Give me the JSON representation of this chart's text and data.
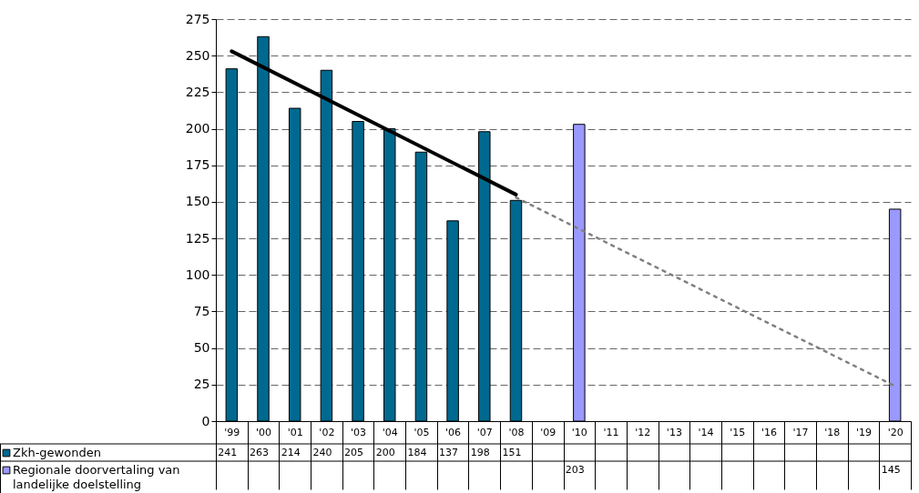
{
  "chart_data": {
    "type": "bar",
    "categories": [
      "'99",
      "'00",
      "'01",
      "'02",
      "'03",
      "'04",
      "'05",
      "'06",
      "'07",
      "'08",
      "'09",
      "'10",
      "'11",
      "'12",
      "'13",
      "'14",
      "'15",
      "'16",
      "'17",
      "'18",
      "'19",
      "'20"
    ],
    "series": [
      {
        "name": "Zkh-gewonden",
        "color": "#00698f",
        "values": [
          241,
          263,
          214,
          240,
          205,
          200,
          184,
          137,
          198,
          151,
          null,
          null,
          null,
          null,
          null,
          null,
          null,
          null,
          null,
          null,
          null,
          null
        ],
        "value_labels": [
          "241",
          "263",
          "214",
          "240",
          "205",
          "200",
          "184",
          "137",
          "198",
          "151",
          null,
          null,
          null,
          null,
          null,
          null,
          null,
          null,
          null,
          null,
          null,
          null
        ]
      },
      {
        "name": "Regionale doorvertaling van landelijke doelstelling",
        "color": "#9999ff",
        "values": [
          null,
          null,
          null,
          null,
          null,
          null,
          null,
          null,
          null,
          null,
          null,
          203,
          null,
          null,
          null,
          null,
          null,
          null,
          null,
          null,
          null,
          145
        ],
        "value_labels": [
          null,
          null,
          null,
          null,
          null,
          null,
          null,
          null,
          null,
          null,
          null,
          "203",
          null,
          null,
          null,
          null,
          null,
          null,
          null,
          null,
          null,
          "145"
        ]
      },
      {
        "type": "line",
        "x": [
          "'99",
          "'08"
        ],
        "values": [
          253,
          155
        ],
        "color": "#000000",
        "line_style": "solid"
      },
      {
        "type": "line",
        "x": [
          "'08",
          "'20"
        ],
        "values": [
          153,
          24
        ],
        "color": "#808080",
        "line_style": "dotted"
      }
    ],
    "ylim": [
      0,
      275
    ],
    "yticks": [
      0,
      25,
      50,
      75,
      100,
      125,
      150,
      175,
      200,
      225,
      250,
      275
    ],
    "grid": "y",
    "legend": "bottom left"
  }
}
